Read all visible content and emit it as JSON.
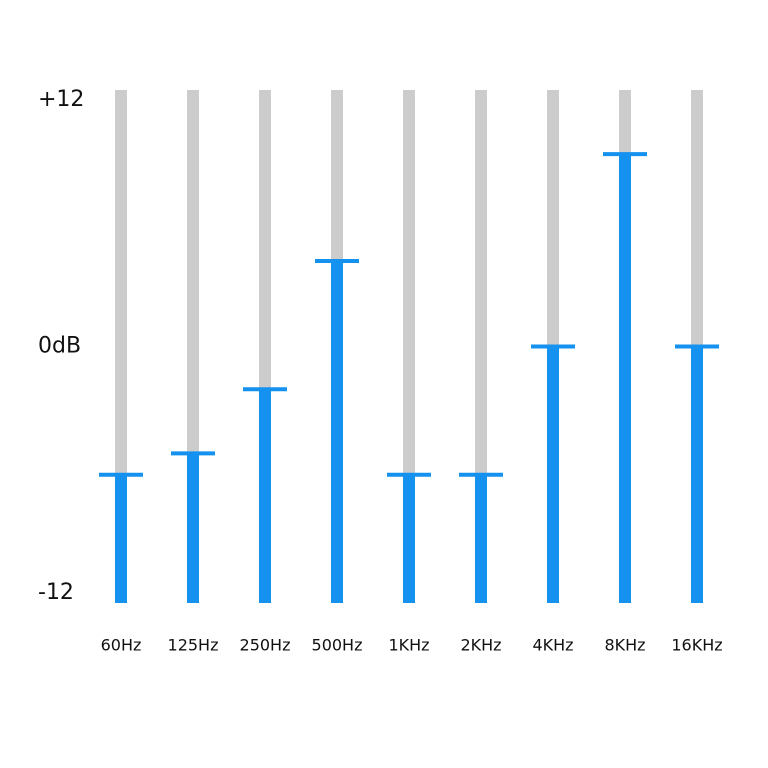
{
  "chart_data": {
    "type": "bar",
    "categories": [
      "60Hz",
      "125Hz",
      "250Hz",
      "500Hz",
      "1KHz",
      "2KHz",
      "4KHz",
      "8KHz",
      "16KHz"
    ],
    "values": [
      -6,
      -5,
      -2,
      4,
      -6,
      -6,
      0,
      9,
      0
    ],
    "color": "#1591f0",
    "track_color": "#cccccc",
    "ylim": [
      -12,
      12
    ],
    "yticks": [
      {
        "value": 12,
        "label": "+12"
      },
      {
        "value": 0,
        "label": "0dB"
      },
      {
        "value": -12,
        "label": "-12"
      }
    ],
    "grid": false
  }
}
